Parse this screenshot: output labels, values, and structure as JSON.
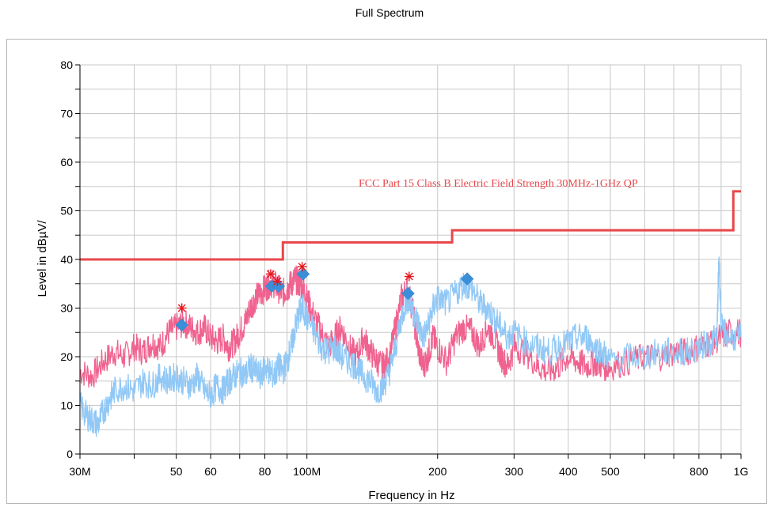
{
  "title": "Full Spectrum",
  "chart_data": {
    "type": "line",
    "title": "Full Spectrum",
    "xlabel": "Frequency in Hz",
    "ylabel": "Level in dBµV/",
    "x_scale": "log",
    "xlim": [
      "30M",
      "1G"
    ],
    "ylim": [
      0,
      80
    ],
    "grid": true,
    "x_ticks": [
      {
        "hz": 30000000,
        "label": "30M"
      },
      {
        "hz": 50000000,
        "label": "50"
      },
      {
        "hz": 60000000,
        "label": "60"
      },
      {
        "hz": 80000000,
        "label": "80"
      },
      {
        "hz": 100000000,
        "label": "100M"
      },
      {
        "hz": 200000000,
        "label": "200"
      },
      {
        "hz": 300000000,
        "label": "300"
      },
      {
        "hz": 400000000,
        "label": "400"
      },
      {
        "hz": 500000000,
        "label": "500"
      },
      {
        "hz": 800000000,
        "label": "800"
      },
      {
        "hz": 1000000000,
        "label": "1G"
      }
    ],
    "y_ticks": [
      0,
      10,
      20,
      30,
      40,
      50,
      60,
      70,
      80
    ],
    "limit_line": {
      "label": "FCC Part 15 Class B Electric Field Strength 30MHz-1GHz QP",
      "color": "#e8474b",
      "points_mhz_db": [
        [
          30,
          40
        ],
        [
          88,
          40
        ],
        [
          88,
          43.5
        ],
        [
          216,
          43.5
        ],
        [
          216,
          46
        ],
        [
          960,
          46
        ],
        [
          960,
          54
        ],
        [
          1000,
          54
        ]
      ]
    },
    "series": [
      {
        "color": "#f0628f",
        "points_mhz_db": [
          [
            30,
            17
          ],
          [
            32,
            16
          ],
          [
            34,
            19
          ],
          [
            36,
            21
          ],
          [
            38,
            20
          ],
          [
            40,
            22
          ],
          [
            42,
            21
          ],
          [
            44,
            23
          ],
          [
            46,
            22
          ],
          [
            48,
            25
          ],
          [
            50,
            26
          ],
          [
            52,
            27
          ],
          [
            54,
            26
          ],
          [
            56,
            25
          ],
          [
            58,
            26
          ],
          [
            60,
            24
          ],
          [
            62,
            23
          ],
          [
            64,
            24
          ],
          [
            66,
            22
          ],
          [
            68,
            23
          ],
          [
            70,
            25
          ],
          [
            72,
            27
          ],
          [
            74,
            30
          ],
          [
            76,
            32
          ],
          [
            78,
            33
          ],
          [
            80,
            34
          ],
          [
            82,
            35
          ],
          [
            84,
            35
          ],
          [
            86,
            34
          ],
          [
            88,
            33
          ],
          [
            90,
            34
          ],
          [
            92,
            35
          ],
          [
            94,
            36
          ],
          [
            96,
            35
          ],
          [
            98,
            34
          ],
          [
            100,
            32
          ],
          [
            104,
            28
          ],
          [
            108,
            25
          ],
          [
            112,
            22
          ],
          [
            116,
            24
          ],
          [
            120,
            26
          ],
          [
            125,
            22
          ],
          [
            130,
            20
          ],
          [
            135,
            24
          ],
          [
            140,
            21
          ],
          [
            145,
            19
          ],
          [
            150,
            18
          ],
          [
            155,
            20
          ],
          [
            160,
            26
          ],
          [
            165,
            32
          ],
          [
            170,
            34
          ],
          [
            175,
            30
          ],
          [
            180,
            22
          ],
          [
            185,
            18
          ],
          [
            190,
            20
          ],
          [
            195,
            24
          ],
          [
            200,
            22
          ],
          [
            210,
            19
          ],
          [
            220,
            24
          ],
          [
            230,
            26
          ],
          [
            240,
            25
          ],
          [
            250,
            22
          ],
          [
            260,
            26
          ],
          [
            270,
            24
          ],
          [
            280,
            20
          ],
          [
            290,
            18
          ],
          [
            300,
            22
          ],
          [
            320,
            21
          ],
          [
            340,
            18
          ],
          [
            360,
            17
          ],
          [
            380,
            18
          ],
          [
            400,
            20
          ],
          [
            420,
            19
          ],
          [
            440,
            18
          ],
          [
            460,
            19
          ],
          [
            480,
            18
          ],
          [
            500,
            18
          ],
          [
            550,
            19
          ],
          [
            600,
            20
          ],
          [
            650,
            20
          ],
          [
            700,
            21
          ],
          [
            750,
            21
          ],
          [
            800,
            22
          ],
          [
            850,
            23
          ],
          [
            900,
            24
          ],
          [
            940,
            25
          ],
          [
            1000,
            25
          ]
        ]
      },
      {
        "color": "#91c8f6",
        "points_mhz_db": [
          [
            30,
            10
          ],
          [
            31,
            8
          ],
          [
            32,
            7
          ],
          [
            33,
            6
          ],
          [
            34,
            9
          ],
          [
            35,
            11
          ],
          [
            36,
            13
          ],
          [
            38,
            14
          ],
          [
            40,
            13
          ],
          [
            42,
            15
          ],
          [
            44,
            14
          ],
          [
            46,
            16
          ],
          [
            48,
            15
          ],
          [
            50,
            16
          ],
          [
            52,
            15
          ],
          [
            54,
            14
          ],
          [
            56,
            16
          ],
          [
            58,
            13
          ],
          [
            60,
            12
          ],
          [
            62,
            14
          ],
          [
            64,
            13
          ],
          [
            66,
            15
          ],
          [
            68,
            16
          ],
          [
            70,
            17
          ],
          [
            72,
            16
          ],
          [
            74,
            18
          ],
          [
            76,
            17
          ],
          [
            78,
            16
          ],
          [
            80,
            18
          ],
          [
            82,
            17
          ],
          [
            84,
            16
          ],
          [
            86,
            18
          ],
          [
            88,
            17
          ],
          [
            90,
            19
          ],
          [
            92,
            22
          ],
          [
            94,
            26
          ],
          [
            96,
            29
          ],
          [
            98,
            30
          ],
          [
            100,
            28
          ],
          [
            104,
            25
          ],
          [
            108,
            22
          ],
          [
            112,
            21
          ],
          [
            116,
            22
          ],
          [
            120,
            20
          ],
          [
            125,
            19
          ],
          [
            130,
            18
          ],
          [
            135,
            16
          ],
          [
            140,
            15
          ],
          [
            145,
            13
          ],
          [
            150,
            14
          ],
          [
            155,
            17
          ],
          [
            160,
            22
          ],
          [
            165,
            28
          ],
          [
            170,
            32
          ],
          [
            175,
            30
          ],
          [
            180,
            27
          ],
          [
            185,
            24
          ],
          [
            190,
            26
          ],
          [
            195,
            30
          ],
          [
            200,
            32
          ],
          [
            210,
            31
          ],
          [
            220,
            33
          ],
          [
            230,
            35
          ],
          [
            240,
            34
          ],
          [
            250,
            31
          ],
          [
            260,
            30
          ],
          [
            270,
            28
          ],
          [
            280,
            26
          ],
          [
            290,
            24
          ],
          [
            300,
            25
          ],
          [
            320,
            23
          ],
          [
            340,
            22
          ],
          [
            360,
            21
          ],
          [
            380,
            22
          ],
          [
            400,
            23
          ],
          [
            420,
            24
          ],
          [
            440,
            24
          ],
          [
            460,
            22
          ],
          [
            480,
            21
          ],
          [
            500,
            19
          ],
          [
            550,
            20
          ],
          [
            600,
            20
          ],
          [
            650,
            21
          ],
          [
            700,
            21
          ],
          [
            750,
            21
          ],
          [
            800,
            22
          ],
          [
            850,
            23
          ],
          [
            880,
            24
          ],
          [
            890,
            41
          ],
          [
            900,
            26
          ],
          [
            940,
            24
          ],
          [
            1000,
            24
          ]
        ]
      }
    ],
    "peak_markers": [
      {
        "mhz": 51.5,
        "db": 30
      },
      {
        "mhz": 82.5,
        "db": 37
      },
      {
        "mhz": 85.5,
        "db": 35.5
      },
      {
        "mhz": 97.5,
        "db": 38.5
      },
      {
        "mhz": 172,
        "db": 36.5
      }
    ],
    "quasi_peak_points": [
      {
        "mhz": 51.5,
        "db": 26.5
      },
      {
        "mhz": 83,
        "db": 34.5
      },
      {
        "mhz": 86,
        "db": 34.5
      },
      {
        "mhz": 98,
        "db": 37
      },
      {
        "mhz": 171,
        "db": 33
      },
      {
        "mhz": 234,
        "db": 36
      }
    ]
  }
}
